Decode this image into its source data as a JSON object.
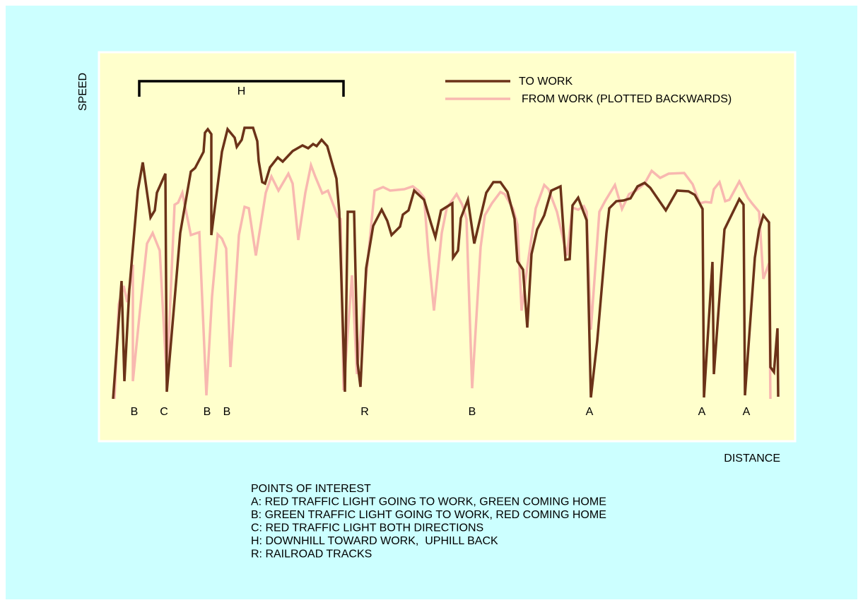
{
  "chart_data": {
    "type": "line",
    "xlabel": "DISTANCE",
    "ylabel": "SPEED",
    "xlim": [
      0,
      985
    ],
    "ylim": [
      0,
      550
    ],
    "legend": "top-right",
    "series": [
      {
        "name": "TO WORK",
        "color": "#6b3218",
        "x": [
          20,
          32,
          36,
          43,
          55,
          62,
          73,
          79,
          82,
          94,
          96,
          115,
          130,
          136,
          148,
          150,
          154,
          159,
          159,
          174,
          182,
          192,
          195,
          202,
          206,
          218,
          224,
          226,
          231,
          235,
          242,
          253,
          260,
          274,
          288,
          296,
          303,
          308,
          315,
          323,
          336,
          340,
          348,
          352,
          361,
          366,
          370,
          378,
          388,
          400,
          408,
          414,
          426,
          430,
          438,
          446,
          460,
          470,
          476,
          484,
          500,
          501,
          508,
          512,
          522,
          531,
          548,
          558,
          568,
          578,
          588,
          592,
          600,
          606,
          612,
          620,
          630,
          640,
          653,
          660,
          666,
          670,
          678,
          690,
          696,
          705,
          718,
          722,
          732,
          742,
          752,
          762,
          772,
          780,
          802,
          818,
          834,
          843,
          854,
          856,
          868,
          870,
          885,
          906,
          912,
          914,
          928,
          934,
          940,
          948,
          950,
          955,
          960,
          961
        ],
        "values": [
          60,
          227,
          85,
          215,
          355,
          395,
          317,
          327,
          352,
          379,
          70,
          295,
          382,
          387,
          410,
          437,
          442,
          435,
          292,
          410,
          442,
          430,
          417,
          427,
          444,
          444,
          425,
          397,
          367,
          365,
          388,
          402,
          396,
          411,
          419,
          415,
          421,
          418,
          427,
          418,
          372,
          325,
          70,
          325,
          325,
          110,
          77,
          245,
          305,
          328,
          312,
          292,
          304,
          321,
          327,
          355,
          342,
          308,
          289,
          327,
          337,
          260,
          270,
          316,
          342,
          280,
          352,
          367,
          367,
          353,
          315,
          255,
          243,
          161,
          265,
          300,
          320,
          355,
          361,
          257,
          258,
          334,
          345,
          313,
          62,
          142,
          295,
          330,
          340,
          341,
          344,
          361,
          366,
          359,
          327,
          355,
          354,
          349,
          329,
          62,
          254,
          95,
          300,
          343,
          335,
          65,
          260,
          300,
          320,
          310,
          105,
          98,
          160,
          63
        ]
      },
      {
        "name": "FROM WORK (PLOTTED BACKWARDS)",
        "color": "#f8b8b0",
        "x": [
          22,
          28,
          35,
          40,
          48,
          48,
          58,
          68,
          76,
          86,
          96,
          107,
          112,
          118,
          130,
          142,
          152,
          160,
          168,
          174,
          180,
          186,
          198,
          206,
          212,
          222,
          236,
          244,
          254,
          268,
          274,
          282,
          292,
          300,
          306,
          316,
          324,
          338,
          342,
          346,
          358,
          365,
          372,
          380,
          390,
          402,
          412,
          432,
          444,
          452,
          460,
          466,
          474,
          485,
          492,
          506,
          514,
          520,
          528,
          540,
          546,
          556,
          568,
          574,
          586,
          592,
          598,
          606,
          618,
          630,
          636,
          648,
          662,
          670,
          678,
          686,
          690,
          696,
          708,
          716,
          730,
          740,
          750,
          760,
          772,
          782,
          794,
          806,
          828,
          840,
          850,
          858,
          866,
          870,
          878,
          886,
          892,
          906,
          918,
          924,
          934,
          940,
          948,
          950
        ],
        "values": [
          60,
          194,
          220,
          197,
          250,
          85,
          185,
          280,
          295,
          270,
          85,
          335,
          338,
          352,
          292,
          296,
          65,
          205,
          293,
          287,
          273,
          105,
          292,
          332,
          330,
          263,
          352,
          375,
          355,
          379,
          365,
          285,
          352,
          391,
          375,
          351,
          355,
          318,
          315,
          72,
          235,
          95,
          175,
          253,
          355,
          360,
          355,
          357,
          361,
          355,
          345,
          267,
          185,
          295,
          330,
          350,
          335,
          315,
          75,
          275,
          320,
          337,
          353,
          350,
          329,
          307,
          185,
          247,
          330,
          363,
          357,
          325,
          263,
          331,
          328,
          333,
          325,
          158,
          325,
          340,
          363,
          329,
          350,
          355,
          365,
          383,
          373,
          379,
          380,
          364,
          337,
          339,
          338,
          357,
          367,
          340,
          342,
          368,
          345,
          337,
          325,
          230,
          252,
          60
        ]
      }
    ],
    "range_annotation": {
      "label": "H",
      "x": [
        57,
        346
      ]
    },
    "annotations": [
      {
        "text": "B",
        "x": 50
      },
      {
        "text": "C",
        "x": 92
      },
      {
        "text": "B",
        "x": 153
      },
      {
        "text": "B",
        "x": 181
      },
      {
        "text": "R",
        "x": 376
      },
      {
        "text": "B",
        "x": 528
      },
      {
        "text": "A",
        "x": 694
      },
      {
        "text": "A",
        "x": 853
      },
      {
        "text": "A",
        "x": 916
      }
    ],
    "notes": [
      "POINTS OF INTEREST",
      "A: RED TRAFFIC LIGHT GOING TO WORK, GREEN COMING HOME",
      "B: GREEN TRAFFIC LIGHT GOING TO WORK, RED COMING HOME",
      "C: RED TRAFFIC LIGHT BOTH DIRECTIONS",
      "H: DOWNHILL TOWARD WORK,  UPHILL BACK",
      "R: RAILROAD TRACKS"
    ]
  }
}
